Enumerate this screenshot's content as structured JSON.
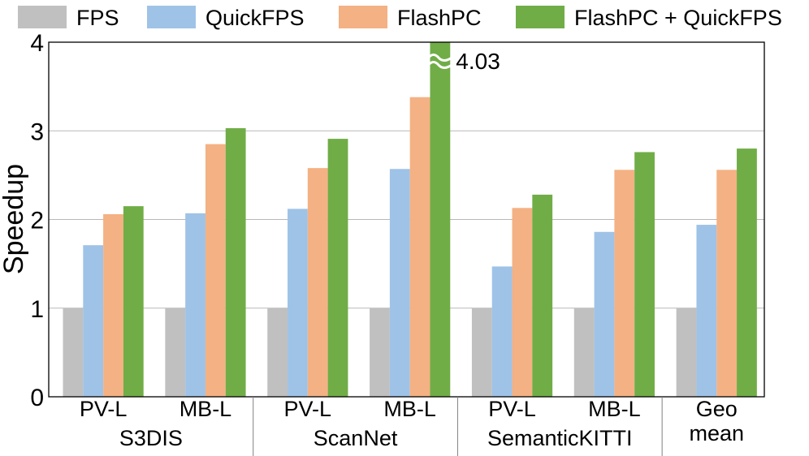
{
  "chart_data": {
    "type": "bar",
    "ylabel": "Speedup",
    "ylim": [
      0,
      4
    ],
    "yticks": [
      0,
      1,
      2,
      3,
      4
    ],
    "grid": true,
    "legend_position": "top",
    "categories": [
      "PV-L",
      "MB-L",
      "PV-L",
      "MB-L",
      "PV-L",
      "MB-L",
      "Geo\nmean"
    ],
    "category_labels": [
      [
        "PV-L"
      ],
      [
        "MB-L"
      ],
      [
        "PV-L"
      ],
      [
        "MB-L"
      ],
      [
        "PV-L"
      ],
      [
        "MB-L"
      ],
      [
        "Geo",
        "mean"
      ]
    ],
    "groups": [
      {
        "label": "S3DIS",
        "categories": [
          0,
          1
        ]
      },
      {
        "label": "ScanNet",
        "categories": [
          2,
          3
        ]
      },
      {
        "label": "SemanticKITTI",
        "categories": [
          4,
          5
        ]
      },
      {
        "label": "",
        "categories": [
          6
        ]
      }
    ],
    "series": [
      {
        "name": "FPS",
        "color": "#c0c0c0",
        "values": [
          1,
          1,
          1,
          1,
          1,
          1,
          1
        ]
      },
      {
        "name": "QuickFPS",
        "color": "#9fc3e7",
        "values": [
          1.71,
          2.07,
          2.12,
          2.57,
          1.47,
          1.86,
          1.94
        ]
      },
      {
        "name": "FlashPC",
        "color": "#f4b183",
        "values": [
          2.06,
          2.85,
          2.58,
          3.38,
          2.13,
          2.56,
          2.56
        ]
      },
      {
        "name": "FlashPC + QuickFPS",
        "color": "#70ad47",
        "values": [
          2.15,
          3.03,
          2.91,
          4.03,
          2.28,
          2.76,
          2.8
        ]
      }
    ],
    "annotations": [
      {
        "text": "4.03",
        "series": 3,
        "category": 3,
        "note": "bar exceeds axis (broken)"
      }
    ]
  }
}
